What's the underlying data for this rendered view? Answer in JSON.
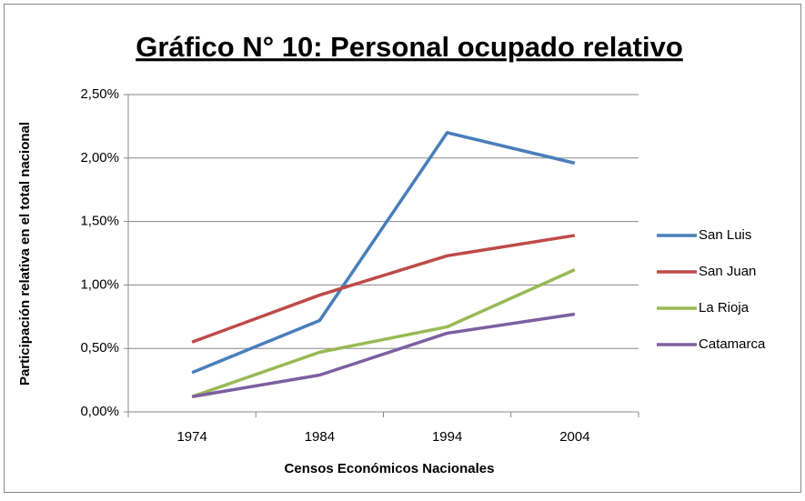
{
  "chart_data": {
    "type": "line",
    "title": "Gráfico N° 10: Personal ocupado relativo",
    "x_label": "Censos Económicos Nacionales",
    "y_label": "Participación relativa en el total nacional",
    "categories": [
      "1974",
      "1984",
      "1994",
      "2004"
    ],
    "series": [
      {
        "name": "San Luis",
        "color": "#4a7ebb",
        "values": [
          0.31,
          0.72,
          2.2,
          1.96
        ]
      },
      {
        "name": "San Juan",
        "color": "#be4b48",
        "values": [
          0.55,
          0.92,
          1.23,
          1.39
        ]
      },
      {
        "name": "La Rioja",
        "color": "#98b954",
        "values": [
          0.12,
          0.47,
          0.67,
          1.12
        ]
      },
      {
        "name": "Catamarca",
        "color": "#7d5fa0",
        "values": [
          0.12,
          0.29,
          0.62,
          0.77
        ]
      }
    ],
    "ylim": [
      0,
      2.5
    ],
    "yticks": [
      {
        "value": 0,
        "label": "0,00%"
      },
      {
        "value": 0.5,
        "label": "0,50%"
      },
      {
        "value": 1,
        "label": "1,00%"
      },
      {
        "value": 1.5,
        "label": "1,50%"
      },
      {
        "value": 2,
        "label": "2,00%"
      },
      {
        "value": 2.5,
        "label": "2,50%"
      }
    ],
    "grid": true,
    "legend": "right"
  }
}
